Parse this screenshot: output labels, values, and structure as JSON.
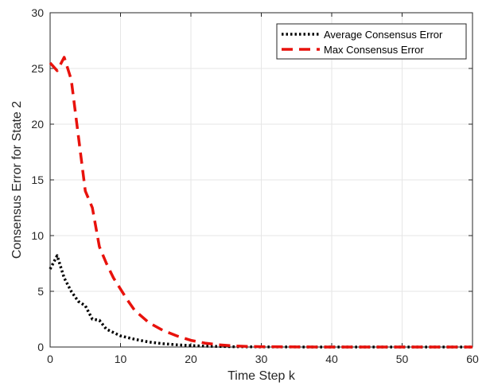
{
  "chart_data": {
    "type": "line",
    "title": "",
    "xlabel": "Time Step k",
    "ylabel": "Consensus Error for State 2",
    "xlim": [
      0,
      60
    ],
    "ylim": [
      0,
      30
    ],
    "xticks": [
      0,
      10,
      20,
      30,
      40,
      50,
      60
    ],
    "yticks": [
      0,
      5,
      10,
      15,
      20,
      25,
      30
    ],
    "grid": true,
    "legend_position": "top-right",
    "series": [
      {
        "name": "Average Consensus Error",
        "color": "#000000",
        "style": "dotted",
        "x": [
          0,
          1,
          2,
          3,
          4,
          5,
          6,
          7,
          8,
          9,
          10,
          12,
          14,
          16,
          18,
          20,
          22,
          24,
          26,
          28,
          30,
          35,
          40,
          45,
          50,
          55,
          60
        ],
        "y": [
          7.0,
          8.2,
          6.2,
          5.0,
          4.1,
          3.7,
          2.5,
          2.4,
          1.6,
          1.3,
          1.0,
          0.7,
          0.45,
          0.3,
          0.2,
          0.13,
          0.08,
          0.05,
          0.03,
          0.02,
          0.01,
          0.005,
          0.0,
          0.0,
          0.0,
          0.0,
          0.0
        ]
      },
      {
        "name": "Max Consensus Error",
        "color": "#e8120c",
        "style": "dashed",
        "x": [
          0,
          1,
          2,
          3,
          4,
          5,
          6,
          7,
          8,
          9,
          10,
          11,
          12,
          14,
          16,
          18,
          20,
          22,
          24,
          26,
          28,
          30,
          35,
          40,
          45,
          50,
          55,
          60
        ],
        "y": [
          25.5,
          24.8,
          26.0,
          24.0,
          19.0,
          14.0,
          12.5,
          9.0,
          7.5,
          6.2,
          5.2,
          4.2,
          3.3,
          2.2,
          1.5,
          1.0,
          0.6,
          0.35,
          0.2,
          0.1,
          0.05,
          0.03,
          0.01,
          0.0,
          0.0,
          0.0,
          0.0,
          0.0
        ]
      }
    ]
  }
}
